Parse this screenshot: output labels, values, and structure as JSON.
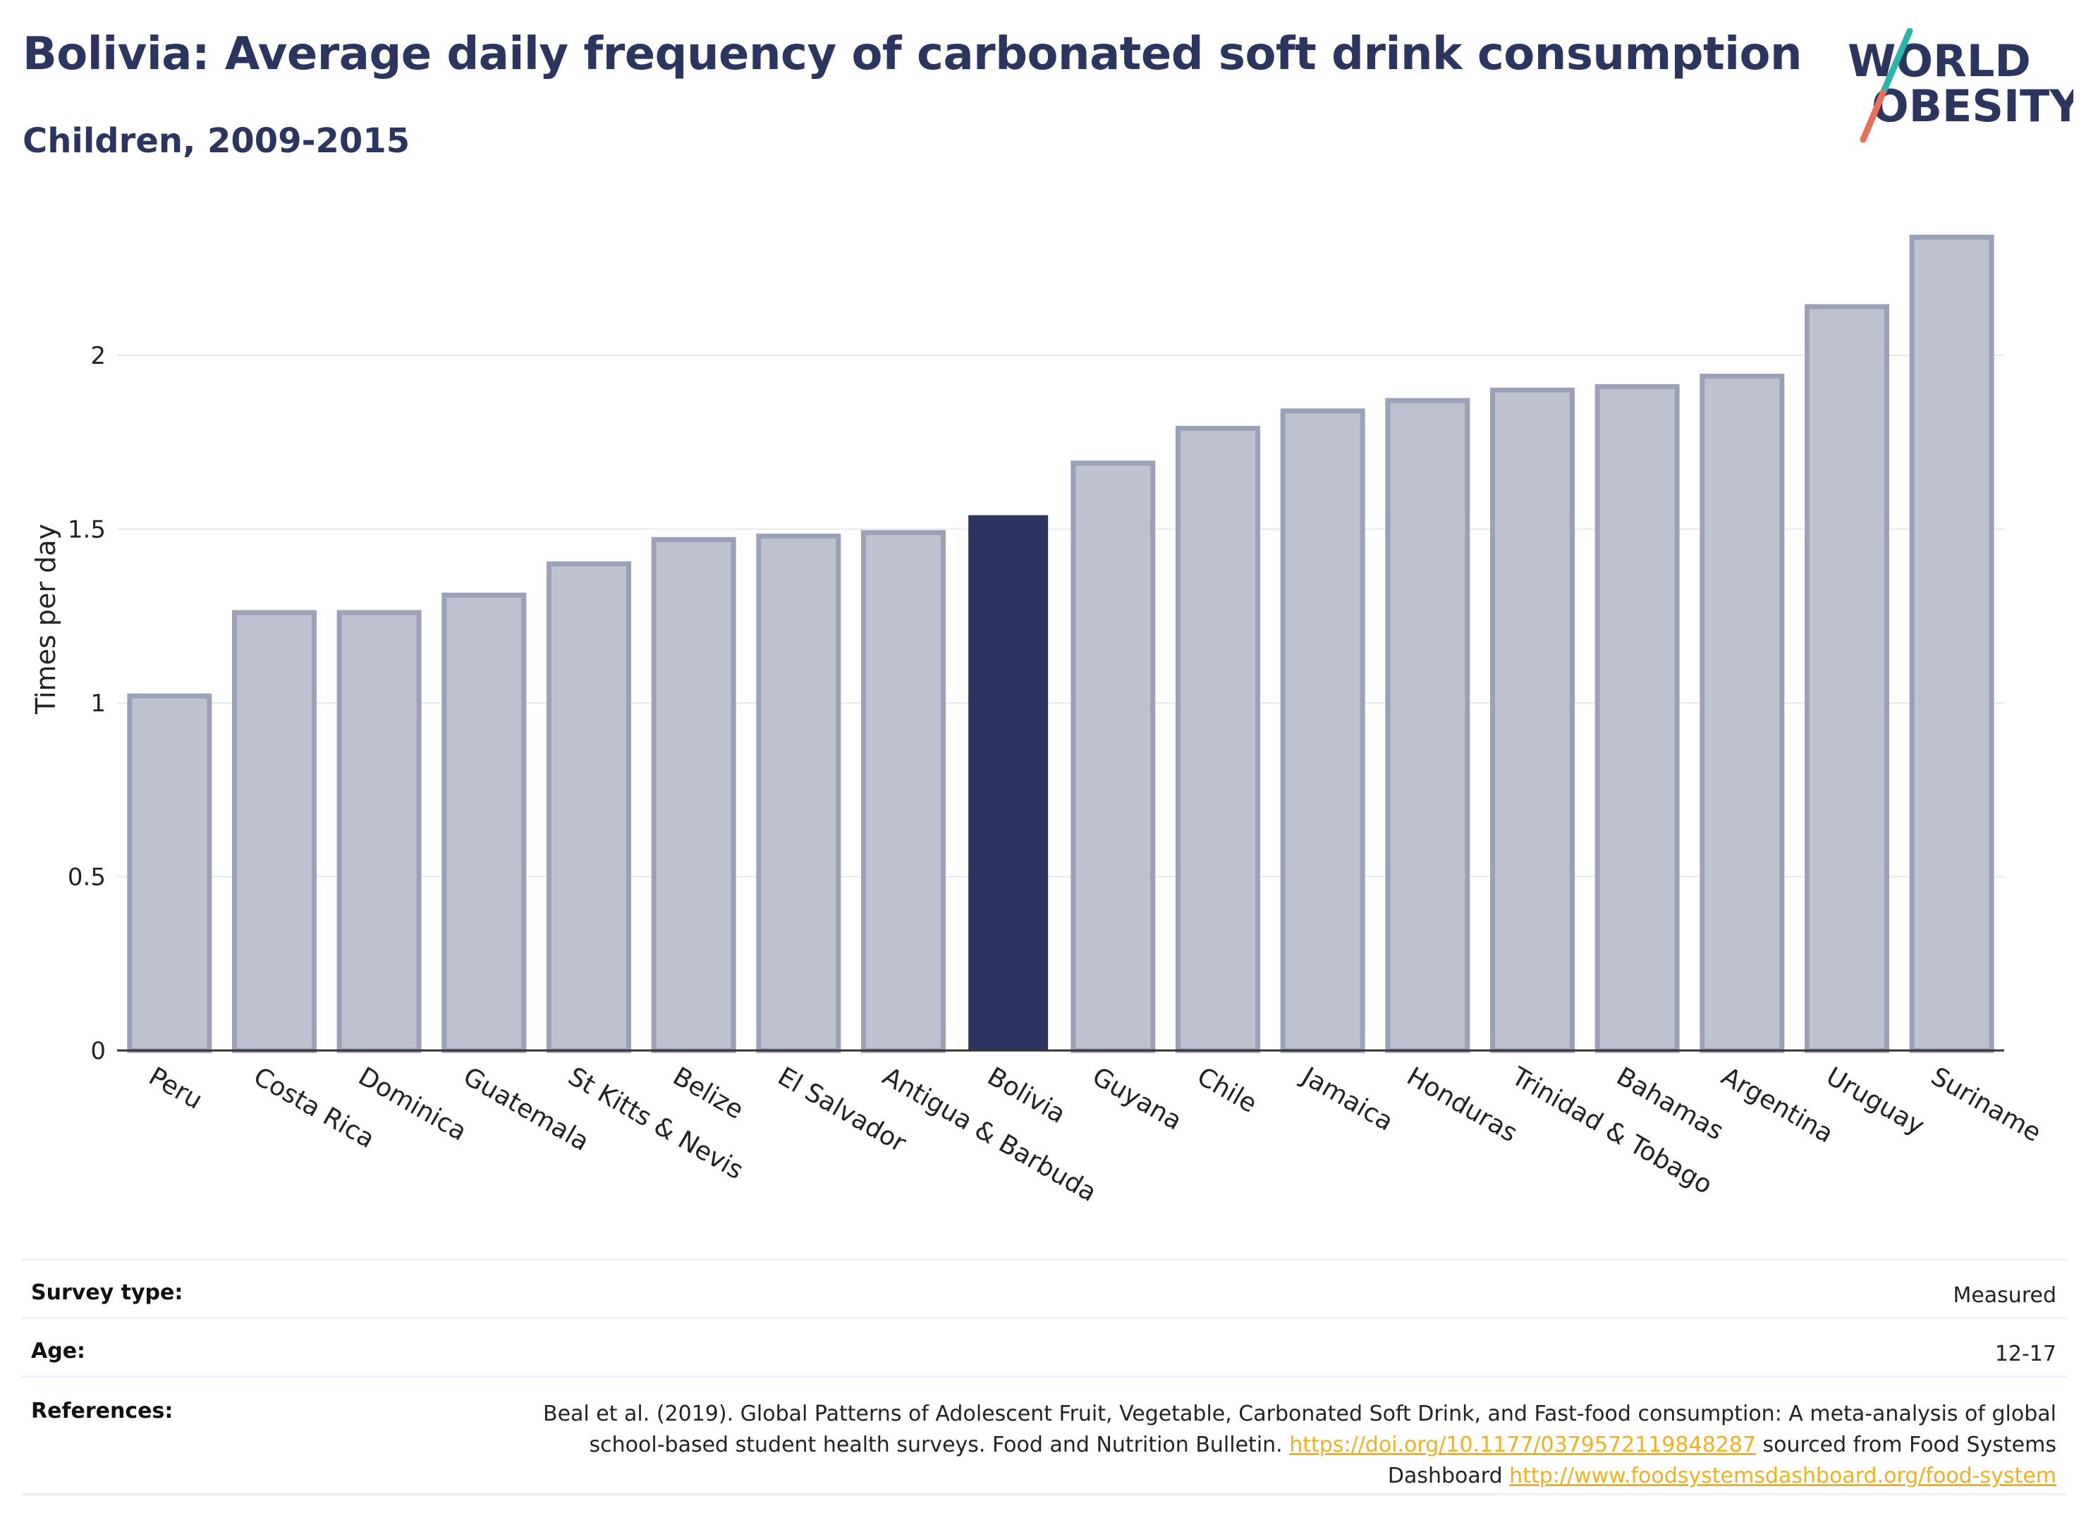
{
  "title": "Bolivia: Average daily frequency of carbonated soft drink consumption",
  "subtitle": "Children, 2009-2015",
  "logo": {
    "line1": "WORLD",
    "line2": "OBESITY",
    "color_text": "#2b355f",
    "color_accent_teal": "#2bb5a8",
    "color_accent_red": "#e8705a"
  },
  "chart_data": {
    "type": "bar",
    "ylabel": "Times per day",
    "xlabel": "",
    "ylim": [
      0,
      2.4
    ],
    "yticks": [
      0,
      0.5,
      1,
      1.5,
      2
    ],
    "ytick_labels": [
      "0",
      "0.5",
      "1",
      "1.5",
      "2"
    ],
    "grid": true,
    "categories": [
      "Peru",
      "Costa Rica",
      "Dominica",
      "Guatemala",
      "St Kitts & Nevis",
      "Belize",
      "El Salvador",
      "Antigua & Barbuda",
      "Bolivia",
      "Guyana",
      "Chile",
      "Jamaica",
      "Honduras",
      "Trinidad & Tobago",
      "Bahamas",
      "Argentina",
      "Uruguay",
      "Suriname"
    ],
    "values": [
      1.02,
      1.26,
      1.26,
      1.31,
      1.4,
      1.47,
      1.48,
      1.49,
      1.54,
      1.69,
      1.79,
      1.84,
      1.87,
      1.9,
      1.91,
      1.94,
      2.14,
      2.34
    ],
    "highlight": "Bolivia",
    "colors": {
      "bar": "#bec2d0",
      "bar_border": "#9ba2b8",
      "highlight": "#2b355f",
      "grid": "#e6e9ef",
      "axis": "#333333"
    }
  },
  "meta": {
    "survey_type": {
      "label": "Survey type:",
      "value": "Measured"
    },
    "age": {
      "label": "Age:",
      "value": "12-17"
    },
    "references": {
      "label": "References:",
      "text_1": "Beal et al. (2019). Global Patterns of Adolescent Fruit, Vegetable, Carbonated Soft Drink, and Fast-food consumption: A meta-analysis of global school-based student health surveys. Food and Nutrition Bulletin. ",
      "link_1": "https://doi.org/10.1177/0379572119848287",
      "text_2": " sourced from Food Systems Dashboard ",
      "link_2": "http://www.foodsystemsdashboard.org/food-system"
    }
  }
}
